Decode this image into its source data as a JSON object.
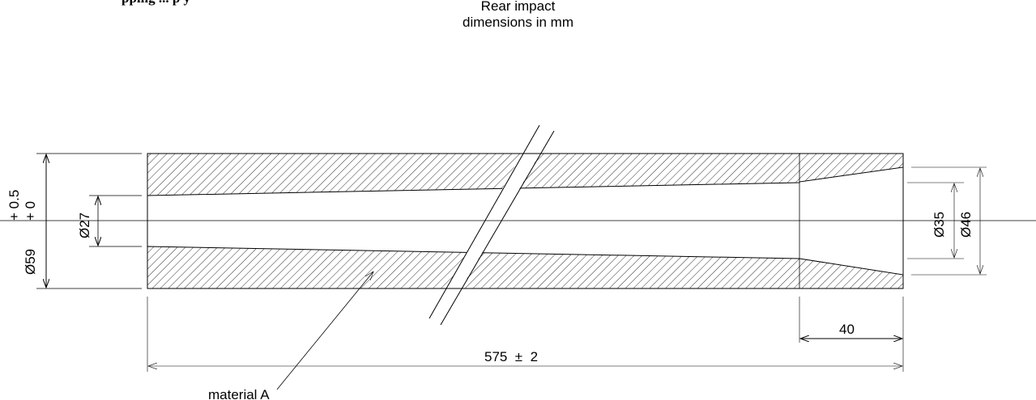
{
  "header": {
    "partial_heading": "pping ... p y",
    "title_line1": "Rear impact",
    "title_line2": "dimensions in mm"
  },
  "drawing": {
    "tolerance_upper": "+ 0.5",
    "tolerance_lower": "+ 0",
    "outer_diameter": "Ø59",
    "bore_diameter": "Ø27",
    "end_bore_diameter": "Ø35",
    "end_outer_diameter": "Ø46",
    "end_length": "40",
    "overall_length": "575  ±  2",
    "material_label": "material A"
  }
}
